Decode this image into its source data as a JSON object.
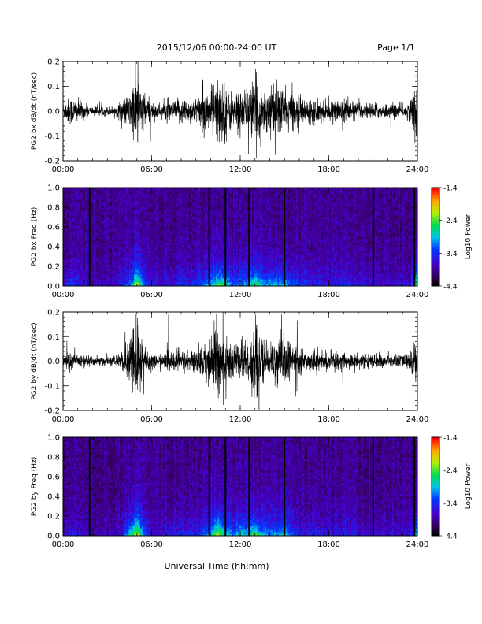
{
  "header": {
    "title": "2015/12/06  00:00-24:00 UT",
    "page": "Page 1/1"
  },
  "footer": {
    "xlabel": "Universal Time (hh:mm)"
  },
  "chart_data": [
    {
      "type": "line",
      "ylabel": "PG2 bx dB/dt (nT/sec)",
      "xlim": [
        0,
        24
      ],
      "ylim": [
        -0.2,
        0.2
      ],
      "xticks": [
        "00:00",
        "06:00",
        "12:00",
        "18:00",
        "24:00"
      ],
      "yticks": [
        "-0.2",
        "-0.1",
        "0.0",
        "0.1",
        "0.2"
      ],
      "envelope": {
        "hours": [
          0,
          0.5,
          1,
          1.5,
          2,
          2.5,
          3,
          3.5,
          4,
          4.5,
          5,
          5.5,
          6,
          6.5,
          7,
          7.5,
          8,
          8.5,
          9,
          9.5,
          10,
          10.5,
          11,
          11.5,
          12,
          12.5,
          13,
          13.5,
          14,
          14.5,
          15,
          15.5,
          16,
          16.5,
          17,
          17.5,
          18,
          18.5,
          19,
          19.5,
          20,
          20.5,
          21,
          21.5,
          22,
          22.5,
          23,
          23.5,
          24
        ],
        "amplitude": [
          0.04,
          0.06,
          0.05,
          0.03,
          0.02,
          0.02,
          0.02,
          0.02,
          0.05,
          0.07,
          0.18,
          0.08,
          0.04,
          0.03,
          0.05,
          0.04,
          0.06,
          0.05,
          0.06,
          0.08,
          0.1,
          0.15,
          0.13,
          0.07,
          0.1,
          0.09,
          0.15,
          0.1,
          0.09,
          0.11,
          0.1,
          0.08,
          0.06,
          0.05,
          0.05,
          0.05,
          0.04,
          0.04,
          0.06,
          0.04,
          0.04,
          0.03,
          0.04,
          0.03,
          0.03,
          0.03,
          0.03,
          0.04,
          0.18
        ]
      }
    },
    {
      "type": "heatmap",
      "ylabel": "PG2 bx Freq (Hz)",
      "xlim": [
        0,
        24
      ],
      "ylim": [
        0,
        1
      ],
      "xticks": [
        "00:00",
        "06:00",
        "12:00",
        "18:00",
        "24:00"
      ],
      "yticks": [
        "0.0",
        "0.2",
        "0.4",
        "0.6",
        "0.8",
        "1.0"
      ],
      "colorbar": {
        "label": "Log10 Power",
        "ticks": [
          "-1.4",
          "-2.4",
          "-3.4",
          "-4.4"
        ],
        "range": [
          -4.4,
          -1.4
        ]
      },
      "data_gaps_hours": [
        1.8,
        9.9,
        11.0,
        12.6,
        15.0,
        21.0,
        23.8
      ]
    },
    {
      "type": "line",
      "ylabel": "PG2 by dB/dt (nT/sec)",
      "xlim": [
        0,
        24
      ],
      "ylim": [
        -0.2,
        0.2
      ],
      "xticks": [
        "00:00",
        "06:00",
        "12:00",
        "18:00",
        "24:00"
      ],
      "yticks": [
        "-0.2",
        "-0.1",
        "0.0",
        "0.1",
        "0.2"
      ],
      "envelope": {
        "hours": [
          0,
          0.5,
          1,
          1.5,
          2,
          2.5,
          3,
          3.5,
          4,
          4.5,
          5,
          5.5,
          6,
          6.5,
          7,
          7.5,
          8,
          8.5,
          9,
          9.5,
          10,
          10.5,
          11,
          11.5,
          12,
          12.5,
          13,
          13.5,
          14,
          14.5,
          15,
          15.5,
          16,
          16.5,
          17,
          17.5,
          18,
          18.5,
          19,
          19.5,
          20,
          20.5,
          21,
          21.5,
          22,
          22.5,
          23,
          23.5,
          24
        ],
        "amplitude": [
          0.03,
          0.04,
          0.03,
          0.03,
          0.02,
          0.02,
          0.02,
          0.02,
          0.04,
          0.12,
          0.2,
          0.08,
          0.03,
          0.03,
          0.04,
          0.05,
          0.05,
          0.05,
          0.05,
          0.07,
          0.1,
          0.19,
          0.12,
          0.09,
          0.12,
          0.1,
          0.17,
          0.1,
          0.09,
          0.1,
          0.12,
          0.07,
          0.05,
          0.04,
          0.05,
          0.04,
          0.04,
          0.04,
          0.05,
          0.04,
          0.03,
          0.03,
          0.03,
          0.03,
          0.03,
          0.03,
          0.03,
          0.04,
          0.12
        ]
      }
    },
    {
      "type": "heatmap",
      "ylabel": "PG2 by Freq (Hz)",
      "xlim": [
        0,
        24
      ],
      "ylim": [
        0,
        1
      ],
      "xticks": [
        "00:00",
        "06:00",
        "12:00",
        "18:00",
        "24:00"
      ],
      "yticks": [
        "0.0",
        "0.2",
        "0.4",
        "0.6",
        "0.8",
        "1.0"
      ],
      "colorbar": {
        "label": "Log10 Power",
        "ticks": [
          "-1.4",
          "-2.4",
          "-3.4",
          "-4.4"
        ],
        "range": [
          -4.4,
          -1.4
        ]
      },
      "data_gaps_hours": [
        1.8,
        9.9,
        11.0,
        12.6,
        15.0,
        21.0,
        23.8
      ]
    }
  ]
}
